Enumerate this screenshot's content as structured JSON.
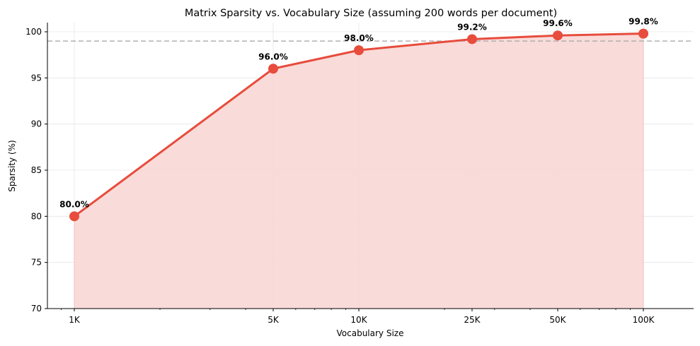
{
  "chart_data": {
    "type": "line",
    "title": "Matrix Sparsity vs. Vocabulary Size (assuming 200 words per document)",
    "xlabel": "Vocabulary Size",
    "ylabel": "Sparsity (%)",
    "x_scale": "log",
    "categories": [
      "1K",
      "5K",
      "10K",
      "25K",
      "50K",
      "100K"
    ],
    "x": [
      1000,
      5000,
      10000,
      25000,
      50000,
      100000
    ],
    "series": [
      {
        "name": "Sparsity",
        "values": [
          80.0,
          96.0,
          98.0,
          99.2,
          99.6,
          99.8
        ],
        "labels": [
          "80.0%",
          "96.0%",
          "98.0%",
          "99.2%",
          "99.6%",
          "99.8%"
        ],
        "color": "#e74c3c",
        "fill": "#f8d7d5",
        "marker": "circle"
      }
    ],
    "reference_line": {
      "y": 99,
      "style": "dashed",
      "color": "#b0b0b0"
    },
    "ylim": [
      70,
      101
    ],
    "xlim": [
      700,
      150000
    ],
    "yticks": [
      70,
      75,
      80,
      85,
      90,
      95,
      100
    ],
    "grid": true,
    "legend": null
  }
}
